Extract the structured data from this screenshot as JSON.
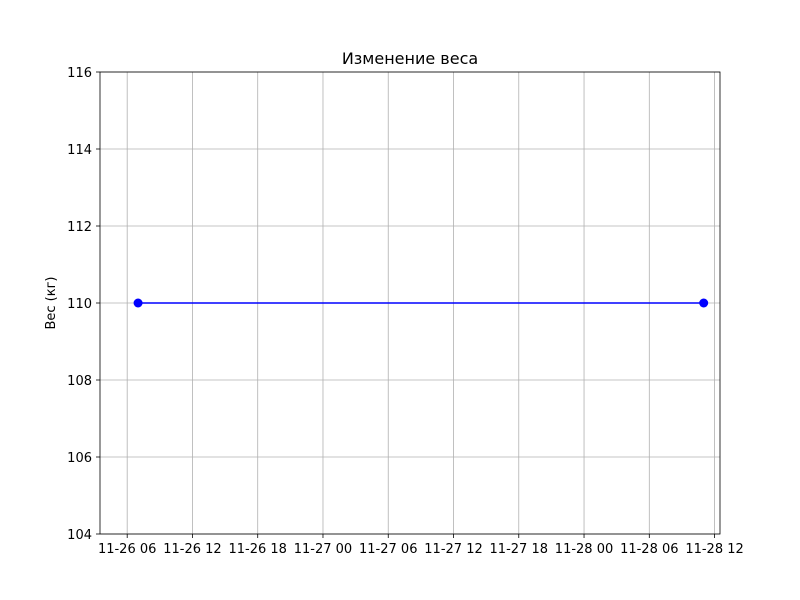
{
  "chart_data": {
    "type": "line",
    "title": "Изменение веса",
    "xlabel": "",
    "ylabel": "Вес (кг)",
    "x": [
      "11-26 07:00",
      "11-28 11:00"
    ],
    "series": [
      {
        "values": [
          110,
          110
        ],
        "color": "#0000ff",
        "marker": "circle"
      }
    ],
    "xlim": [
      "11-26 03:30",
      "11-28 12:30"
    ],
    "ylim": [
      104,
      116
    ],
    "xticks": [
      {
        "label": "11-26 06",
        "at": "11-26 06:00"
      },
      {
        "label": "11-26 12",
        "at": "11-26 12:00"
      },
      {
        "label": "11-26 18",
        "at": "11-26 18:00"
      },
      {
        "label": "11-27 00",
        "at": "11-27 00:00"
      },
      {
        "label": "11-27 06",
        "at": "11-27 06:00"
      },
      {
        "label": "11-27 12",
        "at": "11-27 12:00"
      },
      {
        "label": "11-27 18",
        "at": "11-27 18:00"
      },
      {
        "label": "11-28 00",
        "at": "11-28 00:00"
      },
      {
        "label": "11-28 06",
        "at": "11-28 06:00"
      },
      {
        "label": "11-28 12",
        "at": "11-28 12:00"
      }
    ],
    "yticks": [
      "104",
      "106",
      "108",
      "110",
      "112",
      "114",
      "116"
    ],
    "grid": true
  }
}
